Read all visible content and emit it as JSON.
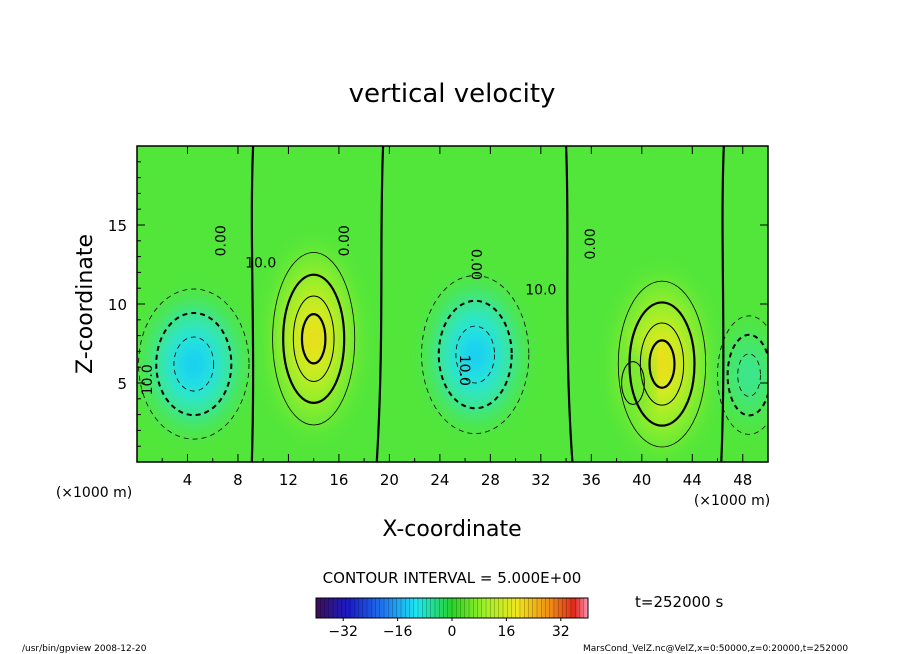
{
  "chart_data": {
    "type": "contour",
    "title": "vertical velocity",
    "xlabel": "X-coordinate",
    "ylabel": "Z-coordinate",
    "x_unit_label": "(×1000 m)",
    "x_unit_label_right": "(×1000 m)",
    "xlim": [
      0,
      50
    ],
    "ylim": [
      0,
      20
    ],
    "x_ticks": [
      4,
      8,
      12,
      16,
      20,
      24,
      28,
      32,
      36,
      40,
      44,
      48
    ],
    "x_tick_labels": [
      "4",
      "8",
      "12",
      "16",
      "20",
      "24",
      "28",
      "32",
      "36",
      "40",
      "44",
      "48"
    ],
    "y_ticks": [
      5,
      10,
      15
    ],
    "y_tick_labels": [
      "5",
      "10",
      "15"
    ],
    "contour_interval_text": "CONTOUR INTERVAL = 5.000E+00",
    "time_text": "t=252000 s",
    "colorbar": {
      "range": [
        -40,
        40
      ],
      "ticks": [
        -32,
        -16,
        0,
        16,
        32
      ],
      "tick_labels": [
        "−32",
        "−16",
        "0",
        "16",
        "32"
      ]
    },
    "contour_labels": [
      {
        "text": "0.00",
        "x": 7.0,
        "y": 14.0,
        "rot": -90
      },
      {
        "text": "0.00",
        "x": 16.8,
        "y": 14.0,
        "rot": -90
      },
      {
        "text": "0.00",
        "x": 26.5,
        "y": 12.5,
        "rot": 90
      },
      {
        "text": "0.00",
        "x": 36.3,
        "y": 13.8,
        "rot": -90
      },
      {
        "text": "10.0",
        "x": 9.8,
        "y": 12.3,
        "rot": 0
      },
      {
        "text": "10.0",
        "x": 32.0,
        "y": 10.6,
        "rot": 0
      },
      {
        "text": "10.0",
        "x": 1.2,
        "y": 5.2,
        "rot": -90
      },
      {
        "text": "10.0",
        "x": 25.6,
        "y": 5.8,
        "rot": 90
      }
    ],
    "updrafts": [
      {
        "name": "updraft-1",
        "cx": 14.0,
        "cz": 7.8,
        "peak": 22,
        "sx": 3.1,
        "sz": 5.2
      },
      {
        "name": "updraft-2",
        "cx": 41.6,
        "cz": 6.2,
        "peak": 22,
        "sx": 3.3,
        "sz": 5.0
      },
      {
        "name": "updraft-2b",
        "cx": 39.3,
        "cz": 5.0,
        "peak": 8,
        "sx": 1.2,
        "sz": 1.8
      }
    ],
    "downdrafts": [
      {
        "name": "downdraft-1",
        "cx": 4.5,
        "cz": 6.2,
        "peak": -14,
        "sx": 3.5,
        "sz": 3.8
      },
      {
        "name": "downdraft-2",
        "cx": 26.8,
        "cz": 6.8,
        "peak": -14,
        "sx": 3.4,
        "sz": 4.0
      },
      {
        "name": "downdraft-3",
        "cx": 48.5,
        "cz": 5.5,
        "peak": -6,
        "sx": 2.0,
        "sz": 3.0
      }
    ]
  },
  "footer": {
    "left": "/usr/bin/gpview   2008-12-20",
    "right": "MarsCond_VelZ.nc@VelZ,x=0:50000,z=0:20000,t=252000"
  }
}
